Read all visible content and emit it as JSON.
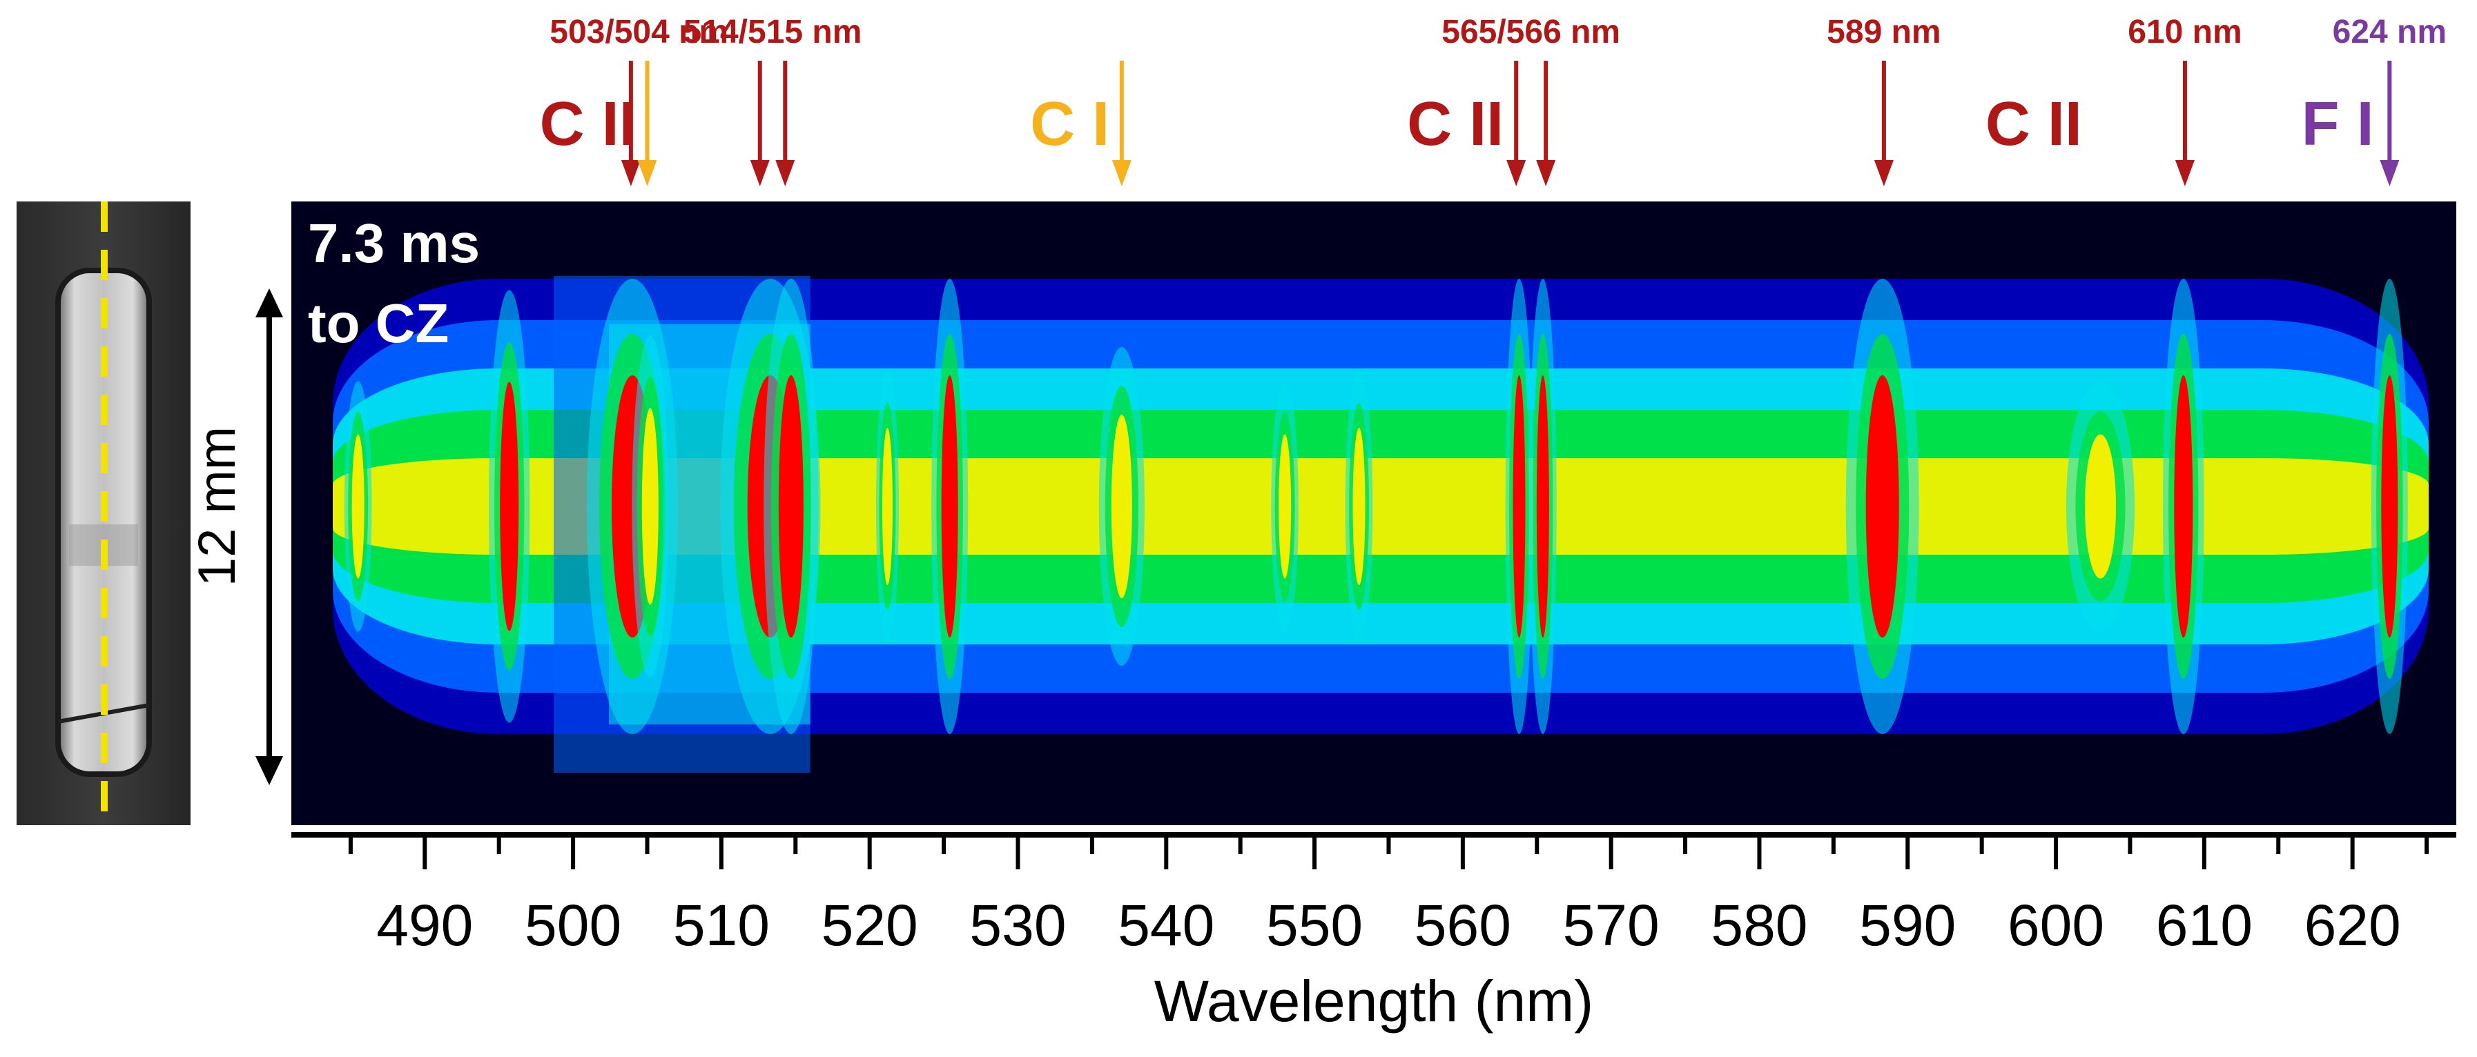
{
  "chart_data": {
    "type": "heatmap",
    "title": "",
    "xlabel": "Wavelength (nm)",
    "ylabel": "12 mm",
    "xlim": [
      481,
      627
    ],
    "x_major_ticks": [
      490,
      500,
      510,
      520,
      530,
      540,
      550,
      560,
      570,
      580,
      590,
      600,
      610,
      620
    ],
    "x_minor_ticks": [
      485,
      495,
      505,
      515,
      525,
      535,
      545,
      555,
      565,
      575,
      585,
      595,
      605,
      615,
      625
    ],
    "tick_labels": [
      "490",
      "500",
      "510",
      "520",
      "530",
      "540",
      "550",
      "560",
      "570",
      "580",
      "590",
      "600",
      "610",
      "620"
    ],
    "time_label": {
      "line1": "7.3 ms",
      "line2": "to CZ"
    },
    "colormap": [
      "#00002a",
      "#0000c0",
      "#0060ff",
      "#00e0f0",
      "#00e040",
      "#f0f000",
      "#ff0000"
    ],
    "continuum_edge_nm": 516,
    "emission_lines": [
      {
        "wavelength": 485.5,
        "intensity": 0.55,
        "width": 0.6
      },
      {
        "wavelength": 495.7,
        "intensity": 0.95,
        "width": 0.9
      },
      {
        "wavelength": 504.0,
        "intensity": 1.0,
        "width": 2.0
      },
      {
        "wavelength": 505.2,
        "intensity": 0.75,
        "width": 0.8
      },
      {
        "wavelength": 513.3,
        "intensity": 1.0,
        "width": 2.2
      },
      {
        "wavelength": 514.7,
        "intensity": 1.0,
        "width": 1.2
      },
      {
        "wavelength": 521.2,
        "intensity": 0.6,
        "width": 0.5
      },
      {
        "wavelength": 525.4,
        "intensity": 1.0,
        "width": 0.8
      },
      {
        "wavelength": 537.0,
        "intensity": 0.7,
        "width": 1.0
      },
      {
        "wavelength": 548.0,
        "intensity": 0.55,
        "width": 0.6
      },
      {
        "wavelength": 553.0,
        "intensity": 0.6,
        "width": 0.6
      },
      {
        "wavelength": 563.8,
        "intensity": 1.0,
        "width": 0.6
      },
      {
        "wavelength": 565.4,
        "intensity": 1.0,
        "width": 0.6
      },
      {
        "wavelength": 588.3,
        "intensity": 1.0,
        "width": 1.6
      },
      {
        "wavelength": 603.0,
        "intensity": 0.55,
        "width": 1.5
      },
      {
        "wavelength": 608.6,
        "intensity": 1.0,
        "width": 0.9
      },
      {
        "wavelength": 622.5,
        "intensity": 1.0,
        "width": 0.8
      }
    ],
    "annotations": [
      {
        "label": "503/504 nm",
        "color": "#b01818",
        "arrows": [
          {
            "wavelength": 503.9,
            "color": "#b01818"
          },
          {
            "wavelength": 505.0,
            "color": "#f5b21c"
          }
        ]
      },
      {
        "label": "514/515 nm",
        "color": "#b01818",
        "arrows": [
          {
            "wavelength": 512.6,
            "color": "#b01818"
          },
          {
            "wavelength": 514.3,
            "color": "#b01818"
          }
        ]
      },
      {
        "label": "",
        "color": "#f5b21c",
        "arrows": [
          {
            "wavelength": 537.0,
            "color": "#f5b21c"
          }
        ]
      },
      {
        "label": "565/566 nm",
        "color": "#b01818",
        "arrows": [
          {
            "wavelength": 563.6,
            "color": "#b01818"
          },
          {
            "wavelength": 565.6,
            "color": "#b01818"
          }
        ]
      },
      {
        "label": "589 nm",
        "color": "#b01818",
        "arrows": [
          {
            "wavelength": 588.4,
            "color": "#b01818"
          }
        ]
      },
      {
        "label": "610 nm",
        "color": "#b01818",
        "arrows": [
          {
            "wavelength": 608.7,
            "color": "#b01818"
          }
        ]
      },
      {
        "label": "624 nm",
        "color": "#7a3aa0",
        "arrows": [
          {
            "wavelength": 622.5,
            "color": "#7a3aa0"
          }
        ]
      }
    ],
    "species_labels": [
      {
        "text": "C II",
        "color": "#b01818",
        "center_nm": 501.0
      },
      {
        "text": "C I",
        "color": "#f5b21c",
        "center_nm": 533.5
      },
      {
        "text": "C II",
        "color": "#b01818",
        "center_nm": 559.5
      },
      {
        "text": "C II",
        "color": "#b01818",
        "center_nm": 598.5
      },
      {
        "text": "F I",
        "color": "#7a3aa0",
        "center_nm": 619.0
      }
    ]
  },
  "colors": {
    "ink": "#000000",
    "background": "#ffffff",
    "photo_dash": "#f2e400",
    "time_text": "#ffffff"
  }
}
